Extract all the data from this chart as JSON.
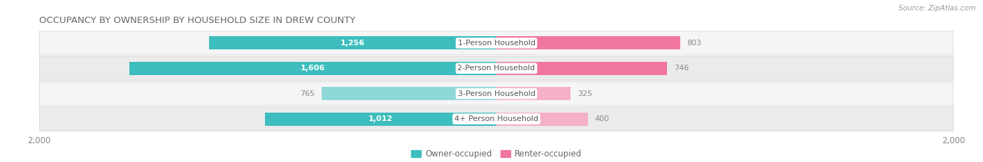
{
  "title": "OCCUPANCY BY OWNERSHIP BY HOUSEHOLD SIZE IN DREW COUNTY",
  "source": "Source: ZipAtlas.com",
  "categories": [
    "1-Person Household",
    "2-Person Household",
    "3-Person Household",
    "4+ Person Household"
  ],
  "owner_values": [
    1256,
    1606,
    765,
    1012
  ],
  "renter_values": [
    803,
    746,
    325,
    400
  ],
  "max_val": 2000,
  "owner_color_dark": "#3dbdbd",
  "renter_color_dark": "#f0769e",
  "owner_color_light": "#8ed8d8",
  "renter_color_light": "#f5b0c5",
  "bg_color": "#ffffff",
  "row_bg_even": "#f5f5f5",
  "row_bg_odd": "#ebebeb",
  "title_color": "#666666",
  "source_color": "#999999",
  "value_color_white": "#ffffff",
  "value_color_gray": "#888888",
  "cat_label_color": "#555555",
  "legend_owner": "Owner-occupied",
  "legend_renter": "Renter-occupied",
  "title_fontsize": 9.5,
  "label_fontsize": 8,
  "axis_fontsize": 8.5,
  "legend_fontsize": 8.5,
  "bar_height": 0.52
}
